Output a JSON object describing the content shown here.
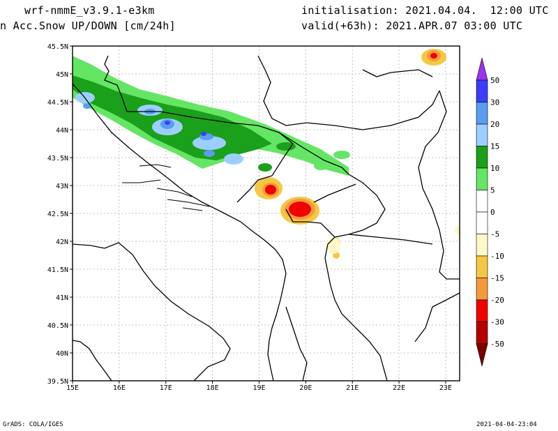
{
  "header": {
    "model": "wrf-nmmE_v3.9.1-e3km",
    "field": "n Acc.Snow UP/DOWN [cm/24h]",
    "initialisation": "initialisation: 2021.04.04.  12:00 UTC",
    "valid": "valid(+63h): 2021.APR.07 03:00 UTC"
  },
  "footer": {
    "credit": "GrADS: COLA/IGES",
    "timestamp": "2021-04-04-23:04"
  },
  "map": {
    "lon_range": [
      15,
      23.3
    ],
    "lat_range": [
      39.5,
      45.5
    ],
    "x_ticks": [
      "15E",
      "16E",
      "17E",
      "18E",
      "19E",
      "20E",
      "21E",
      "22E",
      "23E"
    ],
    "y_ticks": [
      "45.5N",
      "45N",
      "44.5N",
      "44N",
      "43.5N",
      "43N",
      "42.5N",
      "42N",
      "41.5N",
      "41N",
      "40.5N",
      "40N",
      "39.5N"
    ]
  },
  "legend": {
    "labels": [
      "50",
      "30",
      "20",
      "15",
      "10",
      "5",
      "0",
      "-5",
      "-10",
      "-15",
      "-20",
      "-30",
      "-50"
    ],
    "colors": [
      "#3c3cff",
      "#5a9cf0",
      "#9ccfff",
      "#1aa01a",
      "#64e664",
      "#ffffff",
      "#ffffff",
      "#fff8c8",
      "#f5c841",
      "#f59a3c",
      "#f00000",
      "#b40000",
      "#7a0000"
    ],
    "top_arrow_color": "#9a32f0",
    "bottom_arrow_color": "#7a0000"
  }
}
